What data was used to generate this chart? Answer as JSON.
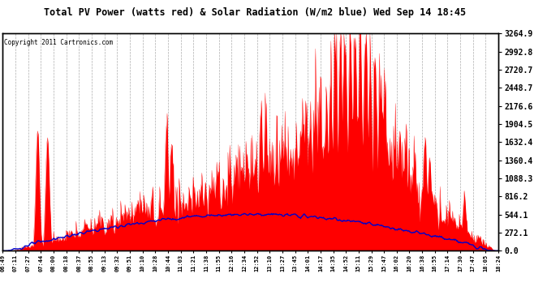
{
  "title": "Total PV Power (watts red) & Solar Radiation (W/m2 blue) Wed Sep 14 18:45",
  "copyright": "Copyright 2011 Cartronics.com",
  "ylabel_right_labels": [
    "3264.9",
    "2992.8",
    "2720.7",
    "2448.7",
    "2176.6",
    "1904.5",
    "1632.4",
    "1360.4",
    "1088.3",
    "816.2",
    "544.1",
    "272.1",
    "0.0"
  ],
  "ylabel_right_values": [
    3264.9,
    2992.8,
    2720.7,
    2448.7,
    2176.6,
    1904.5,
    1632.4,
    1360.4,
    1088.3,
    816.2,
    544.1,
    272.1,
    0.0
  ],
  "ymax": 3264.9,
  "ymin": 0.0,
  "background_color": "#ffffff",
  "plot_bg_color": "#ffffff",
  "grid_color": "#999999",
  "red_color": "#ff0000",
  "blue_color": "#0000cc",
  "xtick_labels": [
    "06:49",
    "07:11",
    "07:27",
    "07:44",
    "08:00",
    "08:18",
    "08:37",
    "08:55",
    "09:13",
    "09:32",
    "09:51",
    "10:10",
    "10:28",
    "10:44",
    "11:03",
    "11:21",
    "11:38",
    "11:55",
    "12:16",
    "12:34",
    "12:52",
    "13:10",
    "13:27",
    "13:45",
    "14:01",
    "14:17",
    "14:35",
    "14:52",
    "15:11",
    "15:29",
    "15:47",
    "16:02",
    "16:20",
    "16:38",
    "16:55",
    "17:14",
    "17:30",
    "17:47",
    "18:05",
    "18:24"
  ],
  "n_points": 800,
  "solar_max": 600,
  "pv_max": 3264.9
}
